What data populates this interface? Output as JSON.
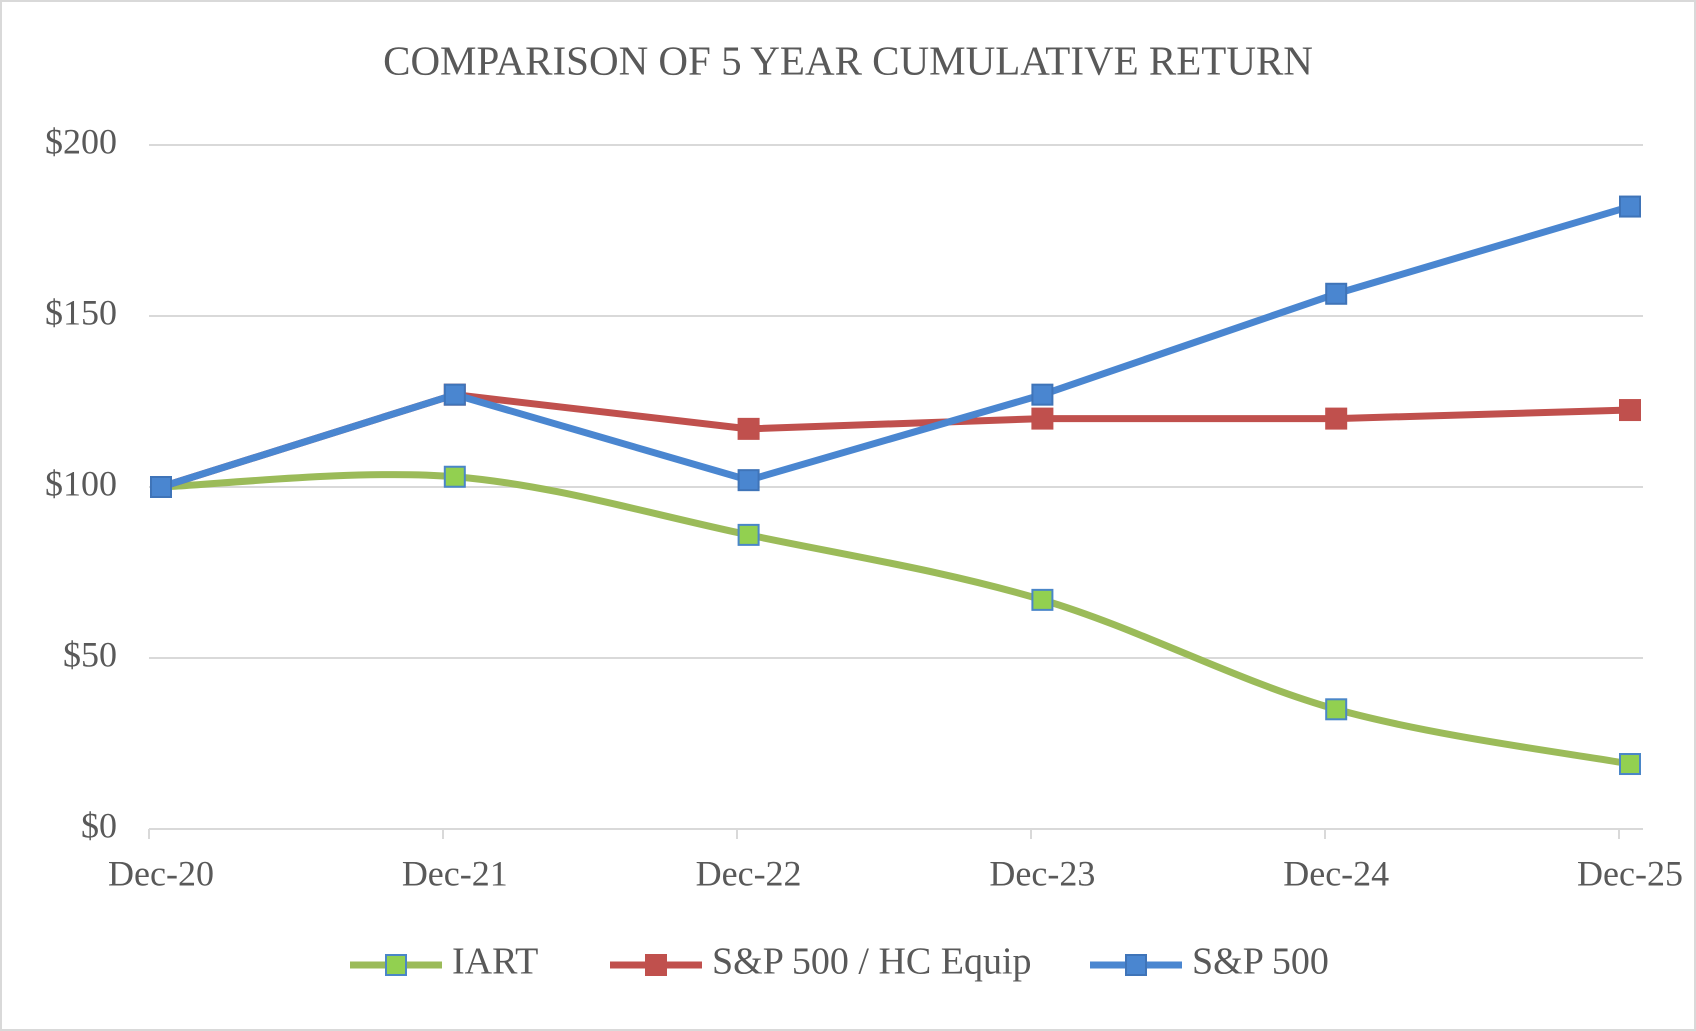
{
  "chart_data": {
    "type": "line",
    "title": "COMPARISON OF 5 YEAR CUMULATIVE RETURN",
    "categories": [
      "Dec-20",
      "Dec-21",
      "Dec-22",
      "Dec-23",
      "Dec-24",
      "Dec-25"
    ],
    "series": [
      {
        "name": "IART",
        "color": "#9bbb59",
        "marker_color": "#92d050",
        "marker_edge": "#4a86c8",
        "smooth": true,
        "values": [
          100,
          103,
          86,
          67,
          35,
          19
        ]
      },
      {
        "name": "S&P 500 / HC Equip",
        "color": "#c0504d",
        "marker_color": "#c0504d",
        "marker_edge": "#c0504d",
        "smooth": false,
        "values": [
          100,
          127,
          117,
          120,
          120,
          122.5
        ]
      },
      {
        "name": "S&P 500",
        "color": "#4a86d0",
        "marker_color": "#4a86d0",
        "marker_edge": "#3f74b8",
        "smooth": false,
        "values": [
          100,
          127,
          102,
          127,
          156.5,
          182
        ]
      }
    ],
    "ylim": [
      0,
      200
    ],
    "yticks": [
      {
        "value": 0,
        "label": "$0"
      },
      {
        "value": 50,
        "label": "$50"
      },
      {
        "value": 100,
        "label": "$100"
      },
      {
        "value": 150,
        "label": "$150"
      },
      {
        "value": 200,
        "label": "$200"
      }
    ],
    "grid": true,
    "legend": "bottom"
  }
}
